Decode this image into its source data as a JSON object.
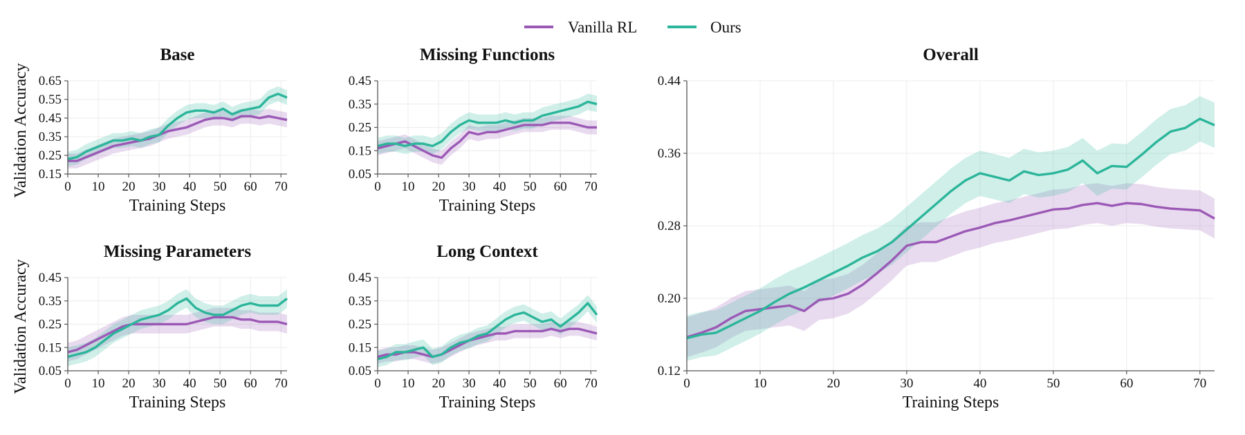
{
  "legend": {
    "items": [
      {
        "label": "Vanilla RL",
        "color": "#9b59b6"
      },
      {
        "label": "Ours",
        "color": "#2bb59a"
      }
    ],
    "placement": "top-center"
  },
  "shared_labels": {
    "ylabel": "Validation Accuracy"
  },
  "chart_data": [
    {
      "type": "line",
      "title": "Base",
      "xlabel": "Training Steps",
      "ylabel": "Validation Accuracy",
      "xlim": [
        0,
        72
      ],
      "ylim": [
        0.15,
        0.65
      ],
      "xticks": [
        0,
        10,
        20,
        30,
        40,
        50,
        60,
        70
      ],
      "yticks": [
        0.15,
        0.25,
        0.35,
        0.45,
        0.55,
        0.65
      ],
      "ytick_labels": [
        "0.15",
        "0.25",
        "0.35",
        "0.45",
        "0.55",
        "0.65"
      ],
      "grid": true,
      "shaded_band": true,
      "x": [
        0,
        3,
        6,
        9,
        12,
        15,
        18,
        21,
        24,
        27,
        30,
        33,
        36,
        39,
        42,
        45,
        48,
        51,
        54,
        57,
        60,
        63,
        66,
        69,
        72
      ],
      "series": [
        {
          "name": "Vanilla RL",
          "color": "#9b59b6",
          "values": [
            0.22,
            0.22,
            0.24,
            0.26,
            0.28,
            0.3,
            0.31,
            0.32,
            0.33,
            0.34,
            0.36,
            0.38,
            0.39,
            0.4,
            0.42,
            0.44,
            0.45,
            0.45,
            0.44,
            0.46,
            0.46,
            0.45,
            0.46,
            0.45,
            0.44
          ],
          "band": 0.04
        },
        {
          "name": "Ours",
          "color": "#2bb59a",
          "values": [
            0.23,
            0.24,
            0.27,
            0.29,
            0.31,
            0.33,
            0.33,
            0.34,
            0.33,
            0.35,
            0.36,
            0.41,
            0.45,
            0.48,
            0.49,
            0.49,
            0.48,
            0.5,
            0.47,
            0.49,
            0.5,
            0.51,
            0.56,
            0.58,
            0.56
          ],
          "band": 0.04
        }
      ]
    },
    {
      "type": "line",
      "title": "Missing Functions",
      "xlabel": "Training Steps",
      "ylabel": "",
      "xlim": [
        0,
        72
      ],
      "ylim": [
        0.05,
        0.45
      ],
      "xticks": [
        0,
        10,
        20,
        30,
        40,
        50,
        60,
        70
      ],
      "yticks": [
        0.05,
        0.15,
        0.25,
        0.35,
        0.45
      ],
      "ytick_labels": [
        "0.05",
        "0.15",
        "0.25",
        "0.35",
        "0.45"
      ],
      "grid": true,
      "shaded_band": true,
      "x": [
        0,
        3,
        6,
        9,
        12,
        15,
        18,
        21,
        24,
        27,
        30,
        33,
        36,
        39,
        42,
        45,
        48,
        51,
        54,
        57,
        60,
        63,
        66,
        69,
        72
      ],
      "series": [
        {
          "name": "Vanilla RL",
          "color": "#9b59b6",
          "values": [
            0.16,
            0.17,
            0.18,
            0.19,
            0.17,
            0.15,
            0.13,
            0.12,
            0.16,
            0.19,
            0.23,
            0.22,
            0.23,
            0.23,
            0.24,
            0.25,
            0.26,
            0.26,
            0.26,
            0.27,
            0.27,
            0.27,
            0.26,
            0.25,
            0.25
          ],
          "band": 0.03
        },
        {
          "name": "Ours",
          "color": "#2bb59a",
          "values": [
            0.17,
            0.18,
            0.18,
            0.17,
            0.18,
            0.18,
            0.17,
            0.19,
            0.23,
            0.26,
            0.28,
            0.27,
            0.27,
            0.27,
            0.28,
            0.27,
            0.28,
            0.28,
            0.3,
            0.31,
            0.32,
            0.33,
            0.34,
            0.36,
            0.35
          ],
          "band": 0.035
        }
      ]
    },
    {
      "type": "line",
      "title": "Missing Parameters",
      "xlabel": "Training Steps",
      "ylabel": "Validation Accuracy",
      "xlim": [
        0,
        72
      ],
      "ylim": [
        0.05,
        0.45
      ],
      "xticks": [
        0,
        10,
        20,
        30,
        40,
        50,
        60,
        70
      ],
      "yticks": [
        0.05,
        0.15,
        0.25,
        0.35,
        0.45
      ],
      "ytick_labels": [
        "0.05",
        "0.15",
        "0.25",
        "0.35",
        "0.45"
      ],
      "grid": true,
      "shaded_band": true,
      "x": [
        0,
        3,
        6,
        9,
        12,
        15,
        18,
        21,
        24,
        27,
        30,
        33,
        36,
        39,
        42,
        45,
        48,
        51,
        54,
        57,
        60,
        63,
        66,
        69,
        72
      ],
      "series": [
        {
          "name": "Vanilla RL",
          "color": "#9b59b6",
          "values": [
            0.13,
            0.14,
            0.16,
            0.18,
            0.2,
            0.22,
            0.24,
            0.25,
            0.25,
            0.25,
            0.25,
            0.25,
            0.25,
            0.25,
            0.26,
            0.27,
            0.28,
            0.28,
            0.28,
            0.27,
            0.27,
            0.26,
            0.26,
            0.26,
            0.25
          ],
          "band": 0.04
        },
        {
          "name": "Ours",
          "color": "#2bb59a",
          "values": [
            0.11,
            0.12,
            0.13,
            0.15,
            0.18,
            0.21,
            0.23,
            0.25,
            0.27,
            0.28,
            0.29,
            0.31,
            0.34,
            0.36,
            0.32,
            0.3,
            0.29,
            0.29,
            0.31,
            0.33,
            0.34,
            0.33,
            0.33,
            0.33,
            0.36
          ],
          "band": 0.04
        }
      ]
    },
    {
      "type": "line",
      "title": "Long Context",
      "xlabel": "Training Steps",
      "ylabel": "",
      "xlim": [
        0,
        72
      ],
      "ylim": [
        0.05,
        0.45
      ],
      "xticks": [
        0,
        10,
        20,
        30,
        40,
        50,
        60,
        70
      ],
      "yticks": [
        0.05,
        0.15,
        0.25,
        0.35,
        0.45
      ],
      "ytick_labels": [
        "0.05",
        "0.15",
        "0.25",
        "0.35",
        "0.45"
      ],
      "grid": true,
      "shaded_band": true,
      "x": [
        0,
        3,
        6,
        9,
        12,
        15,
        18,
        21,
        24,
        27,
        30,
        33,
        36,
        39,
        42,
        45,
        48,
        51,
        54,
        57,
        60,
        63,
        66,
        69,
        72
      ],
      "series": [
        {
          "name": "Vanilla RL",
          "color": "#9b59b6",
          "values": [
            0.11,
            0.12,
            0.12,
            0.13,
            0.13,
            0.12,
            0.11,
            0.12,
            0.14,
            0.16,
            0.18,
            0.19,
            0.2,
            0.21,
            0.21,
            0.22,
            0.22,
            0.22,
            0.22,
            0.23,
            0.22,
            0.23,
            0.23,
            0.22,
            0.21
          ],
          "band": 0.03
        },
        {
          "name": "Ours",
          "color": "#2bb59a",
          "values": [
            0.1,
            0.11,
            0.13,
            0.13,
            0.14,
            0.15,
            0.11,
            0.12,
            0.15,
            0.17,
            0.18,
            0.2,
            0.21,
            0.24,
            0.27,
            0.29,
            0.3,
            0.28,
            0.26,
            0.27,
            0.24,
            0.27,
            0.3,
            0.34,
            0.29
          ],
          "band": 0.035
        }
      ]
    },
    {
      "type": "line",
      "title": "Overall",
      "xlabel": "Training Steps",
      "ylabel": "",
      "xlim": [
        0,
        72
      ],
      "ylim": [
        0.12,
        0.44
      ],
      "xticks": [
        0,
        10,
        20,
        30,
        40,
        50,
        60,
        70
      ],
      "yticks": [
        0.12,
        0.2,
        0.28,
        0.36,
        0.44
      ],
      "ytick_labels": [
        "0.12",
        "0.20",
        "0.28",
        "0.36",
        "0.44"
      ],
      "grid": true,
      "shaded_band": true,
      "x": [
        0,
        2,
        4,
        6,
        8,
        10,
        12,
        14,
        16,
        18,
        20,
        22,
        24,
        26,
        28,
        30,
        32,
        34,
        36,
        38,
        40,
        42,
        44,
        46,
        48,
        50,
        52,
        54,
        56,
        58,
        60,
        62,
        64,
        66,
        68,
        70,
        72
      ],
      "series": [
        {
          "name": "Vanilla RL",
          "color": "#9b59b6",
          "values": [
            0.157,
            0.162,
            0.168,
            0.178,
            0.186,
            0.188,
            0.19,
            0.192,
            0.186,
            0.198,
            0.2,
            0.205,
            0.215,
            0.228,
            0.242,
            0.258,
            0.262,
            0.262,
            0.268,
            0.274,
            0.278,
            0.283,
            0.286,
            0.29,
            0.294,
            0.298,
            0.299,
            0.303,
            0.305,
            0.302,
            0.305,
            0.304,
            0.301,
            0.299,
            0.298,
            0.297,
            0.288
          ],
          "band": 0.022
        },
        {
          "name": "Ours",
          "color": "#2bb59a",
          "values": [
            0.156,
            0.16,
            0.162,
            0.17,
            0.178,
            0.186,
            0.196,
            0.205,
            0.212,
            0.22,
            0.228,
            0.236,
            0.245,
            0.252,
            0.262,
            0.276,
            0.29,
            0.304,
            0.318,
            0.33,
            0.338,
            0.334,
            0.33,
            0.34,
            0.336,
            0.338,
            0.342,
            0.352,
            0.338,
            0.346,
            0.345,
            0.358,
            0.372,
            0.384,
            0.388,
            0.398,
            0.391
          ],
          "band": 0.025
        }
      ]
    }
  ]
}
